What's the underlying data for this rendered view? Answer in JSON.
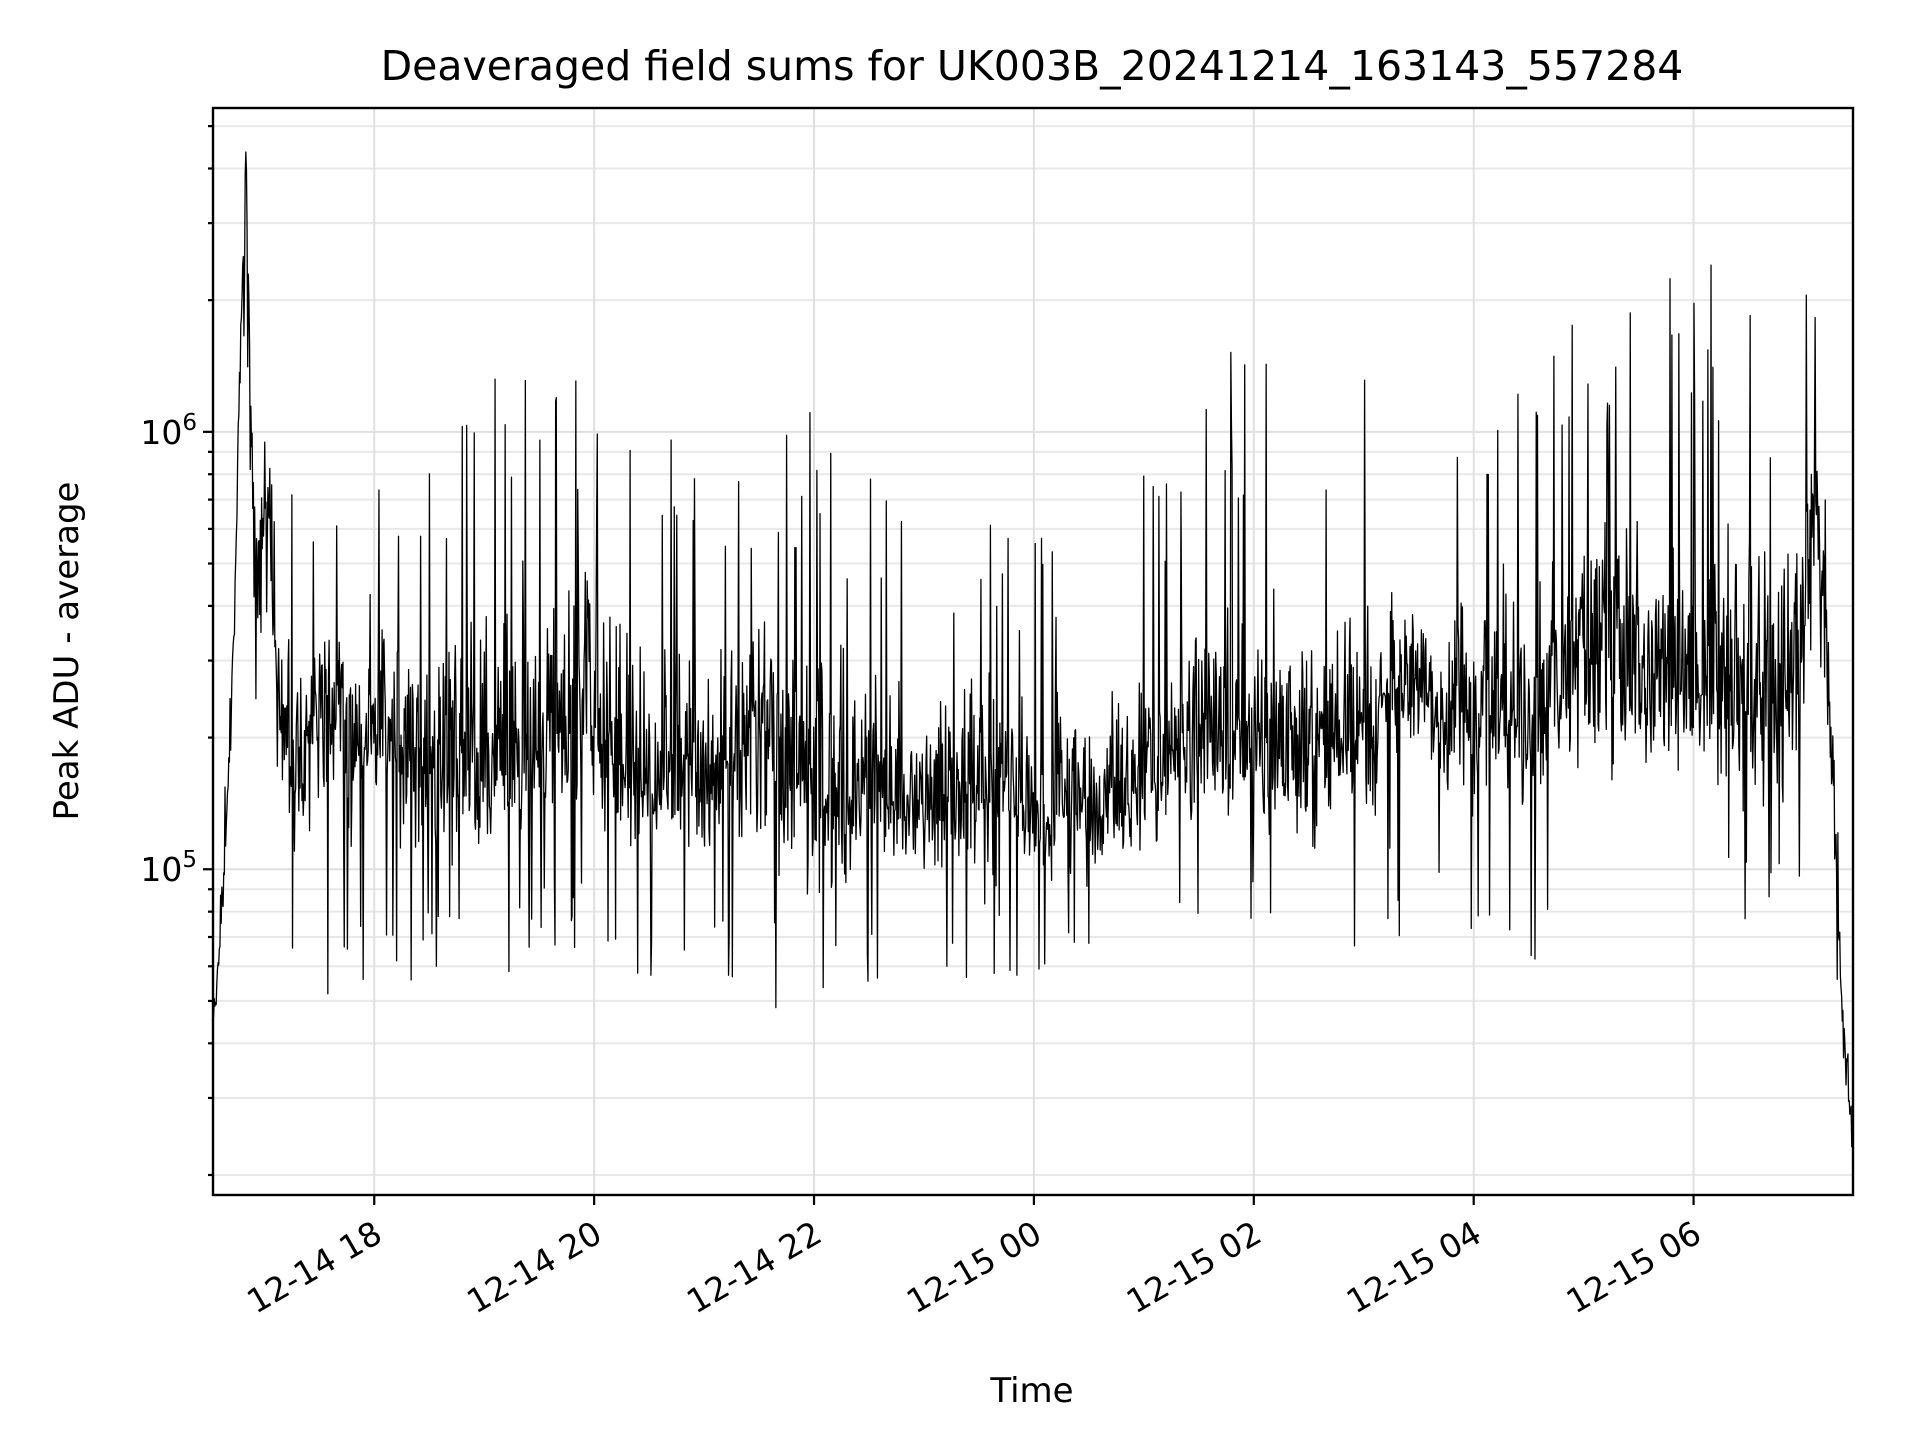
{
  "chart_data": {
    "type": "line",
    "title": "Deaveraged field sums for UK003B_20241214_163143_557284",
    "xlabel": "Time",
    "ylabel": "Peak ADU - average",
    "x_axis": {
      "type": "datetime",
      "min": "2024-12-14T16:32:00",
      "max": "2024-12-15T07:27:00",
      "ticks": [
        {
          "t": "2024-12-14T18:00:00",
          "label": "12-14 18"
        },
        {
          "t": "2024-12-14T20:00:00",
          "label": "12-14 20"
        },
        {
          "t": "2024-12-14T22:00:00",
          "label": "12-14 22"
        },
        {
          "t": "2024-12-15T00:00:00",
          "label": "12-15 00"
        },
        {
          "t": "2024-12-15T02:00:00",
          "label": "12-15 02"
        },
        {
          "t": "2024-12-15T04:00:00",
          "label": "12-15 04"
        },
        {
          "t": "2024-12-15T06:00:00",
          "label": "12-15 06"
        }
      ]
    },
    "y_axis": {
      "scale": "log",
      "min": 18000,
      "max": 5500000,
      "ticks": [
        {
          "value": 100000,
          "base": "10",
          "exp": "5"
        },
        {
          "value": 1000000,
          "base": "10",
          "exp": "6"
        }
      ]
    },
    "grid": true,
    "series": [
      {
        "color": "#000000",
        "x": [
          "2024-12-14T16:32:00",
          "2024-12-14T16:35:00",
          "2024-12-14T16:38:00",
          "2024-12-14T16:41:00",
          "2024-12-14T16:44:00",
          "2024-12-14T16:47:00",
          "2024-12-14T16:50:00",
          "2024-12-14T16:53:00",
          "2024-12-14T16:56:00",
          "2024-12-14T16:59:00",
          "2024-12-14T17:02:00",
          "2024-12-14T17:05:00",
          "2024-12-14T17:10:00",
          "2024-12-14T17:20:00",
          "2024-12-14T17:30:00",
          "2024-12-14T17:45:00",
          "2024-12-14T18:00:00",
          "2024-12-14T18:30:00",
          "2024-12-14T19:00:00",
          "2024-12-14T19:30:00",
          "2024-12-14T20:00:00",
          "2024-12-14T20:30:00",
          "2024-12-14T21:00:00",
          "2024-12-14T21:30:00",
          "2024-12-14T22:00:00",
          "2024-12-14T22:30:00",
          "2024-12-14T23:00:00",
          "2024-12-14T23:30:00",
          "2024-12-15T00:00:00",
          "2024-12-15T00:30:00",
          "2024-12-15T01:00:00",
          "2024-12-15T01:30:00",
          "2024-12-15T02:00:00",
          "2024-12-15T02:30:00",
          "2024-12-15T03:00:00",
          "2024-12-15T03:30:00",
          "2024-12-15T04:00:00",
          "2024-12-15T04:30:00",
          "2024-12-15T05:00:00",
          "2024-12-15T05:30:00",
          "2024-12-15T06:00:00",
          "2024-12-15T06:30:00",
          "2024-12-15T06:45:00",
          "2024-12-15T07:00:00",
          "2024-12-15T07:05:00",
          "2024-12-15T07:10:00",
          "2024-12-15T07:15:00",
          "2024-12-15T07:20:00",
          "2024-12-15T07:25:00",
          "2024-12-15T07:27:00"
        ],
        "y": [
          45000,
          60000,
          95000,
          180000,
          420000,
          1500000,
          4500000,
          900000,
          500000,
          600000,
          700000,
          350000,
          200000,
          170000,
          230000,
          200000,
          220000,
          180000,
          160000,
          200000,
          230000,
          150000,
          170000,
          200000,
          140000,
          150000,
          140000,
          170000,
          130000,
          140000,
          160000,
          200000,
          180000,
          190000,
          230000,
          270000,
          240000,
          210000,
          350000,
          300000,
          250000,
          280000,
          220000,
          400000,
          700000,
          600000,
          200000,
          60000,
          28000,
          22000
        ],
        "noise_band": {
          "upper_envelope_y": [
            60000,
            80000,
            140000,
            300000,
            900000,
            3200000,
            4500000,
            1100000,
            900000,
            1000000,
            900000,
            700000,
            800000,
            700000,
            700000,
            900000,
            900000,
            1000000,
            1400000,
            1700000,
            1300000,
            900000,
            1200000,
            800000,
            1300000,
            800000,
            600000,
            700000,
            600000,
            600000,
            800000,
            1300000,
            1700000,
            1000000,
            1400000,
            800000,
            1000000,
            1400000,
            2000000,
            2200000,
            2800000,
            2000000,
            1200000,
            2200000,
            2400000,
            1000000,
            500000,
            130000,
            45000,
            35000
          ],
          "lower_envelope_y": [
            40000,
            55000,
            80000,
            150000,
            350000,
            900000,
            700000,
            170000,
            200000,
            90000,
            65000,
            65000,
            60000,
            60000,
            45000,
            55000,
            55000,
            55000,
            50000,
            60000,
            60000,
            55000,
            55000,
            50000,
            40000,
            55000,
            50000,
            55000,
            50000,
            55000,
            65000,
            70000,
            75000,
            60000,
            65000,
            70000,
            65000,
            60000,
            70000,
            65000,
            70000,
            65000,
            60000,
            70000,
            80000,
            90000,
            70000,
            45000,
            20000,
            18000
          ]
        }
      }
    ]
  }
}
